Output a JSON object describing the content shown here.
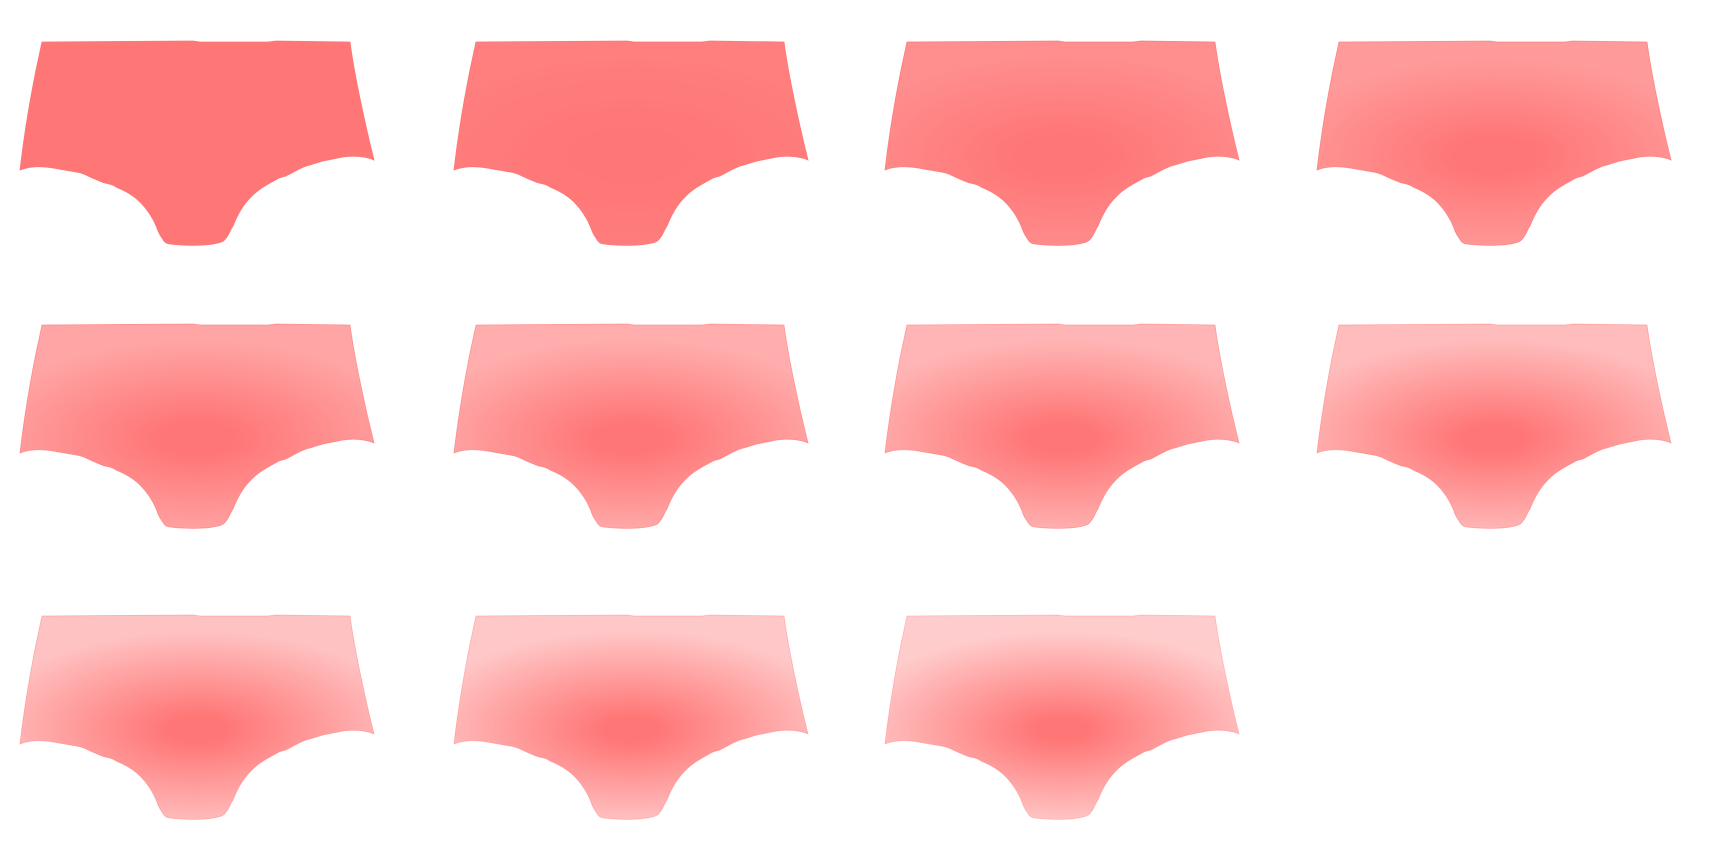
{
  "base_color": "#ff7676",
  "garments": [
    {
      "coverage": 1.0
    },
    {
      "coverage": 0.9
    },
    {
      "coverage": 0.78
    },
    {
      "coverage": 0.68
    },
    {
      "coverage": 0.6
    },
    {
      "coverage": 0.54
    },
    {
      "coverage": 0.48
    },
    {
      "coverage": 0.43
    },
    {
      "coverage": 0.38
    },
    {
      "coverage": 0.34
    },
    {
      "coverage": 0.3
    }
  ]
}
